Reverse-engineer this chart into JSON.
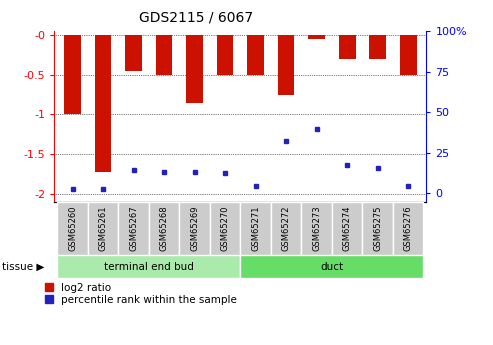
{
  "title": "GDS2115 / 6067",
  "samples": [
    "GSM65260",
    "GSM65261",
    "GSM65267",
    "GSM65268",
    "GSM65269",
    "GSM65270",
    "GSM65271",
    "GSM65272",
    "GSM65273",
    "GSM65274",
    "GSM65275",
    "GSM65276"
  ],
  "log2_ratio": [
    -1.0,
    -1.72,
    -0.45,
    -0.5,
    -0.85,
    -0.5,
    -0.5,
    -0.75,
    -0.05,
    -0.3,
    -0.3,
    -0.5
  ],
  "percentile_rank": [
    3,
    3,
    15,
    14,
    14,
    13,
    5,
    33,
    41,
    18,
    16,
    5
  ],
  "groups": [
    {
      "label": "terminal end bud",
      "start": 0,
      "end": 6
    },
    {
      "label": "duct",
      "start": 6,
      "end": 12
    }
  ],
  "group_colors": [
    "#AAEAAA",
    "#66DD66"
  ],
  "bar_color": "#CC1100",
  "blue_color": "#2222BB",
  "plot_bg": "#FFFFFF",
  "left_yticks": [
    0,
    -0.5,
    -1.0,
    -1.5,
    -2.0
  ],
  "left_yticklabels": [
    "-0",
    "-0.5",
    "-1",
    "-1.5",
    "-2"
  ],
  "right_yticks": [
    0,
    25,
    50,
    75,
    100
  ],
  "right_yticklabels": [
    "0",
    "25",
    "50",
    "75",
    "100%"
  ],
  "ylim_left": [
    -2.1,
    0.05
  ],
  "ylim_right": [
    -5.25,
    2.625
  ],
  "legend_items": [
    {
      "label": "log2 ratio",
      "color": "#CC1100"
    },
    {
      "label": "percentile rank within the sample",
      "color": "#2222BB"
    }
  ],
  "bar_width": 0.55
}
